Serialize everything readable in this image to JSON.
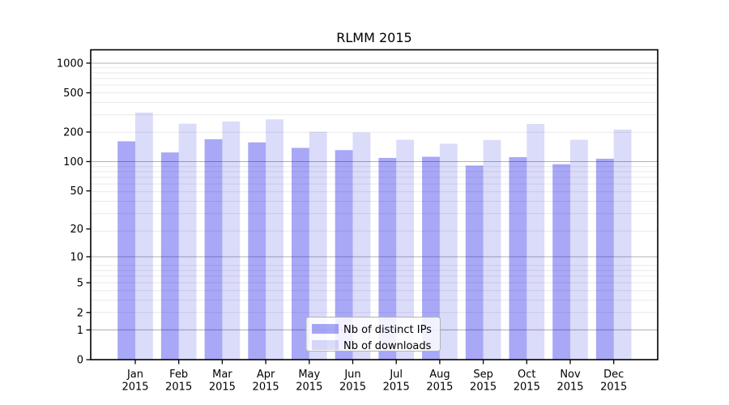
{
  "chart_data": {
    "type": "bar",
    "title": "RLMM 2015",
    "year": "2015",
    "months": [
      "Jan",
      "Feb",
      "Mar",
      "Apr",
      "May",
      "Jun",
      "Jul",
      "Aug",
      "Sep",
      "Oct",
      "Nov",
      "Dec"
    ],
    "series": [
      {
        "name": "Nb of distinct IPs",
        "color": "#a9a9f8",
        "fill": "rgba(0,0,230,0.34)",
        "values": [
          161,
          124,
          169,
          157,
          138,
          131,
          109,
          112,
          91,
          111,
          94,
          107
        ]
      },
      {
        "name": "Nb of downloads",
        "color": "#dcdcfa",
        "fill": "rgba(0,0,219,0.14)",
        "values": [
          315,
          243,
          256,
          269,
          201,
          198,
          167,
          152,
          166,
          242,
          167,
          212
        ]
      }
    ],
    "yticks": [
      0,
      1,
      2,
      5,
      10,
      20,
      50,
      100,
      200,
      500,
      1000
    ],
    "scale": "log1p",
    "grid": true,
    "legend_position": "lower center",
    "grid_major_color": "#b0b0b0",
    "grid_minor_color": "#e9e9e9",
    "spine_color": "#000000",
    "legend_border_color": "#b3b3b3"
  }
}
